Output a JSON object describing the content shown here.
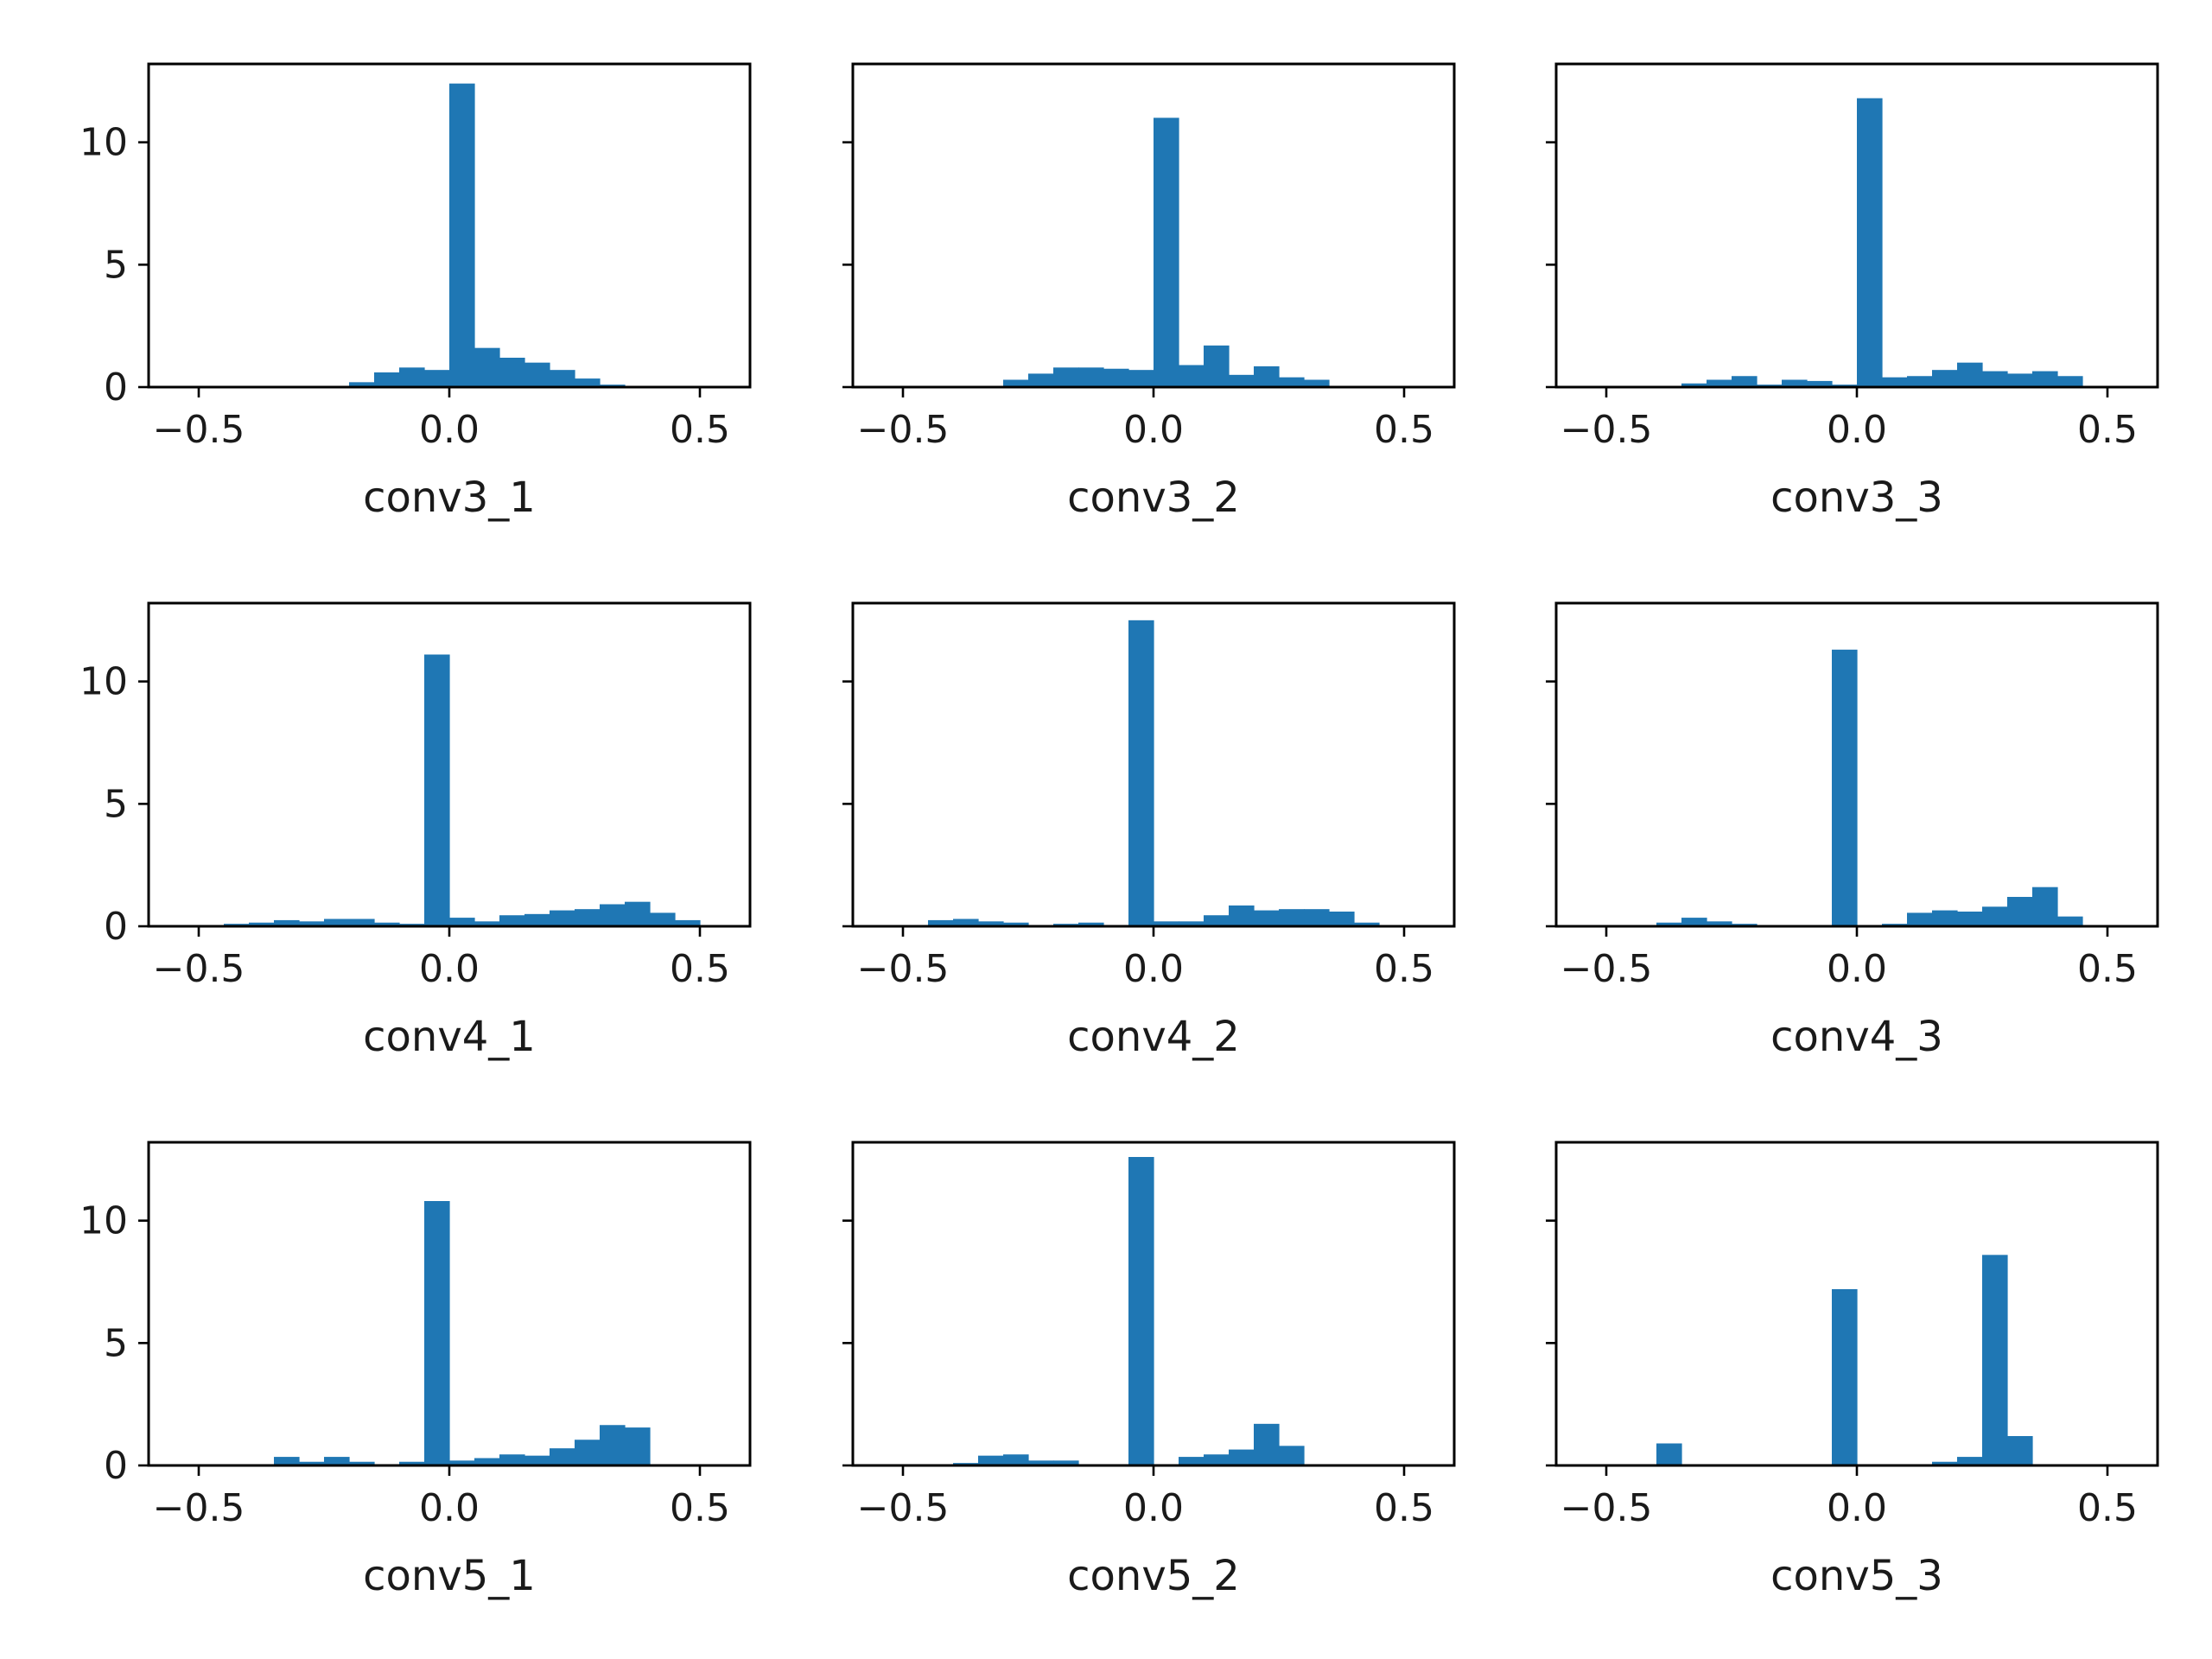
{
  "colors": {
    "bar": "#1f77b4",
    "axis": "#000000",
    "background": "#ffffff"
  },
  "chart_data": [
    {
      "type": "bar",
      "xlabel": "conv3_1",
      "xlim": [
        -0.6,
        0.6
      ],
      "ylim": [
        0,
        13.2
      ],
      "xticks": [
        "-0.5",
        "0.0",
        "0.5"
      ],
      "yticks": [
        "0",
        "5",
        "10"
      ],
      "show_ytick_labels": true,
      "bin_edges": [
        -0.5,
        -0.45,
        -0.4,
        -0.35,
        -0.3,
        -0.25,
        -0.2,
        -0.15,
        -0.1,
        -0.05,
        0.0,
        0.05,
        0.1,
        0.15,
        0.2,
        0.25,
        0.3,
        0.35,
        0.4,
        0.45,
        0.5,
        0.55
      ],
      "values": [
        0,
        0,
        0,
        0,
        0,
        0,
        0.2,
        0.6,
        0.8,
        0.7,
        12.4,
        1.6,
        1.2,
        1.0,
        0.7,
        0.35,
        0.1,
        0,
        0,
        0,
        0
      ]
    },
    {
      "type": "bar",
      "xlabel": "conv3_2",
      "xlim": [
        -0.6,
        0.6
      ],
      "ylim": [
        0,
        13.2
      ],
      "xticks": [
        "-0.5",
        "0.0",
        "0.5"
      ],
      "yticks": [
        "0",
        "5",
        "10"
      ],
      "show_ytick_labels": false,
      "bin_edges": [
        -0.5,
        -0.45,
        -0.4,
        -0.35,
        -0.3,
        -0.25,
        -0.2,
        -0.15,
        -0.1,
        -0.05,
        0.0,
        0.05,
        0.1,
        0.15,
        0.2,
        0.25,
        0.3,
        0.35,
        0.4,
        0.45,
        0.5,
        0.55
      ],
      "values": [
        0,
        0,
        0,
        0,
        0.3,
        0.55,
        0.8,
        0.8,
        0.75,
        0.7,
        11.0,
        0.9,
        1.7,
        0.5,
        0.85,
        0.4,
        0.3,
        0,
        0,
        0,
        0
      ]
    },
    {
      "type": "bar",
      "xlabel": "conv3_3",
      "xlim": [
        -0.6,
        0.6
      ],
      "ylim": [
        0,
        13.2
      ],
      "xticks": [
        "-0.5",
        "0.0",
        "0.5"
      ],
      "yticks": [
        "0",
        "5",
        "10"
      ],
      "show_ytick_labels": false,
      "bin_edges": [
        -0.5,
        -0.45,
        -0.4,
        -0.35,
        -0.3,
        -0.25,
        -0.2,
        -0.15,
        -0.1,
        -0.05,
        0.0,
        0.05,
        0.1,
        0.15,
        0.2,
        0.25,
        0.3,
        0.35,
        0.4,
        0.45,
        0.5,
        0.55
      ],
      "values": [
        0,
        0,
        0,
        0.15,
        0.3,
        0.45,
        0.1,
        0.3,
        0.25,
        0.1,
        11.8,
        0.4,
        0.45,
        0.7,
        1.0,
        0.65,
        0.55,
        0.65,
        0.45,
        0.05,
        0
      ]
    },
    {
      "type": "bar",
      "xlabel": "conv4_1",
      "xlim": [
        -0.6,
        0.6
      ],
      "ylim": [
        0,
        13.2
      ],
      "xticks": [
        "-0.5",
        "0.0",
        "0.5"
      ],
      "yticks": [
        "0",
        "5",
        "10"
      ],
      "show_ytick_labels": true,
      "bin_edges": [
        -0.5,
        -0.45,
        -0.4,
        -0.35,
        -0.3,
        -0.25,
        -0.2,
        -0.15,
        -0.1,
        -0.05,
        0.0,
        0.05,
        0.1,
        0.15,
        0.2,
        0.25,
        0.3,
        0.35,
        0.4,
        0.45,
        0.5,
        0.55
      ],
      "values": [
        0,
        0.1,
        0.15,
        0.25,
        0.2,
        0.3,
        0.3,
        0.15,
        0.1,
        11.1,
        0.35,
        0.2,
        0.45,
        0.5,
        0.65,
        0.7,
        0.9,
        1.0,
        0.55,
        0.25,
        0
      ]
    },
    {
      "type": "bar",
      "xlabel": "conv4_2",
      "xlim": [
        -0.6,
        0.6
      ],
      "ylim": [
        0,
        13.2
      ],
      "xticks": [
        "-0.5",
        "0.0",
        "0.5"
      ],
      "yticks": [
        "0",
        "5",
        "10"
      ],
      "show_ytick_labels": false,
      "bin_edges": [
        -0.5,
        -0.45,
        -0.4,
        -0.35,
        -0.3,
        -0.25,
        -0.2,
        -0.15,
        -0.1,
        -0.05,
        0.0,
        0.05,
        0.1,
        0.15,
        0.2,
        0.25,
        0.3,
        0.35,
        0.4,
        0.45,
        0.5,
        0.55
      ],
      "values": [
        0,
        0.25,
        0.3,
        0.2,
        0.15,
        0.05,
        0.1,
        0.15,
        0.05,
        12.5,
        0.2,
        0.2,
        0.45,
        0.85,
        0.65,
        0.7,
        0.7,
        0.6,
        0.15,
        0,
        0
      ]
    },
    {
      "type": "bar",
      "xlabel": "conv4_3",
      "xlim": [
        -0.6,
        0.6
      ],
      "ylim": [
        0,
        13.2
      ],
      "xticks": [
        "-0.5",
        "0.0",
        "0.5"
      ],
      "yticks": [
        "0",
        "5",
        "10"
      ],
      "show_ytick_labels": false,
      "bin_edges": [
        -0.5,
        -0.45,
        -0.4,
        -0.35,
        -0.3,
        -0.25,
        -0.2,
        -0.15,
        -0.1,
        -0.05,
        0.0,
        0.05,
        0.1,
        0.15,
        0.2,
        0.25,
        0.3,
        0.35,
        0.4,
        0.45,
        0.5,
        0.55
      ],
      "values": [
        0,
        0,
        0.15,
        0.35,
        0.2,
        0.1,
        0.05,
        0,
        0,
        11.3,
        0,
        0.1,
        0.55,
        0.65,
        0.6,
        0.8,
        1.2,
        1.6,
        0.4,
        0,
        0
      ]
    },
    {
      "type": "bar",
      "xlabel": "conv5_1",
      "xlim": [
        -0.6,
        0.6
      ],
      "ylim": [
        0,
        13.2
      ],
      "xticks": [
        "-0.5",
        "0.0",
        "0.5"
      ],
      "yticks": [
        "0",
        "5",
        "10"
      ],
      "show_ytick_labels": true,
      "bin_edges": [
        -0.5,
        -0.45,
        -0.4,
        -0.35,
        -0.3,
        -0.25,
        -0.2,
        -0.15,
        -0.1,
        -0.05,
        0.0,
        0.05,
        0.1,
        0.15,
        0.2,
        0.25,
        0.3,
        0.35,
        0.4,
        0.45,
        0.5,
        0.55
      ],
      "values": [
        0,
        0,
        0.05,
        0.35,
        0.15,
        0.35,
        0.15,
        0.05,
        0.15,
        10.8,
        0.2,
        0.3,
        0.45,
        0.4,
        0.7,
        1.05,
        1.65,
        1.55,
        0,
        0,
        0
      ]
    },
    {
      "type": "bar",
      "xlabel": "conv5_2",
      "xlim": [
        -0.6,
        0.6
      ],
      "ylim": [
        0,
        13.2
      ],
      "xticks": [
        "-0.5",
        "0.0",
        "0.5"
      ],
      "yticks": [
        "0",
        "5",
        "10"
      ],
      "show_ytick_labels": false,
      "bin_edges": [
        -0.5,
        -0.45,
        -0.4,
        -0.35,
        -0.3,
        -0.25,
        -0.2,
        -0.15,
        -0.1,
        -0.05,
        0.0,
        0.05,
        0.1,
        0.15,
        0.2,
        0.25,
        0.3,
        0.35,
        0.4,
        0.45,
        0.5,
        0.55
      ],
      "values": [
        0,
        0,
        0.1,
        0.4,
        0.45,
        0.2,
        0.2,
        0.05,
        0.05,
        12.6,
        0.05,
        0.35,
        0.45,
        0.65,
        1.7,
        0.8,
        0.05,
        0.05,
        0,
        0,
        0
      ]
    },
    {
      "type": "bar",
      "xlabel": "conv5_3",
      "xlim": [
        -0.6,
        0.6
      ],
      "ylim": [
        0,
        13.2
      ],
      "xticks": [
        "-0.5",
        "0.0",
        "0.5"
      ],
      "yticks": [
        "0",
        "5",
        "10"
      ],
      "show_ytick_labels": false,
      "bin_edges": [
        -0.4,
        -0.35,
        -0.3,
        -0.25,
        -0.2,
        -0.15,
        -0.1,
        -0.05,
        0.0,
        0.05,
        0.1,
        0.15,
        0.2,
        0.25,
        0.3,
        0.35,
        0.4
      ],
      "values": [
        0.9,
        0,
        0,
        0,
        0,
        0,
        0,
        7.2,
        0,
        0.05,
        0,
        0.15,
        0.35,
        8.6,
        1.2,
        0
      ]
    }
  ]
}
